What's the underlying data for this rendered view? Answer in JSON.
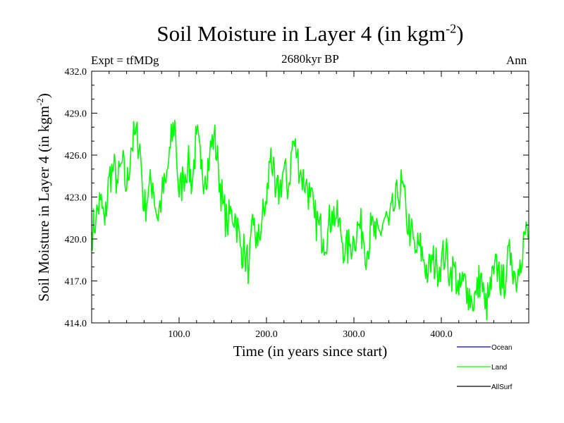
{
  "header": {
    "title": "Soil Moisture in Layer 4 (in kgm",
    "title_exp": "-2",
    "title_close": ")",
    "subtitle": "2680kyr BP",
    "experiment": "Expt = tfMDg",
    "season": "Ann"
  },
  "chart_data": {
    "type": "line",
    "title": "Soil Moisture in Layer 4 (in kgm-2)",
    "subtitle": "2680kyr BP",
    "xlabel": "Time (in years since start)",
    "ylabel": "Soil Moisture in Layer 4 (in kgm",
    "ylabel_exp": "-2",
    "ylabel_close": ")",
    "xlim": [
      0,
      500
    ],
    "ylim": [
      414.0,
      432.0
    ],
    "xticks": [
      100,
      200,
      300,
      400
    ],
    "xtick_labels": [
      "100.0",
      "200.0",
      "300.0",
      "400.0"
    ],
    "yticks": [
      414,
      417,
      420,
      423,
      426,
      429,
      432
    ],
    "ytick_labels": [
      "414.0",
      "417.0",
      "420.0",
      "423.0",
      "426.0",
      "429.0",
      "432.0"
    ],
    "legend": [
      {
        "name": "Ocean",
        "color": "#0000ff"
      },
      {
        "name": "Land",
        "color": "#00ff00"
      },
      {
        "name": "AllSurf",
        "color": "#000000"
      }
    ],
    "series": [
      {
        "name": "Land",
        "color": "#00ff00",
        "x": [
          0,
          5,
          10,
          15,
          20,
          25,
          30,
          35,
          40,
          45,
          50,
          55,
          60,
          65,
          70,
          75,
          80,
          85,
          90,
          95,
          100,
          105,
          110,
          115,
          120,
          125,
          130,
          135,
          140,
          145,
          150,
          155,
          160,
          165,
          170,
          175,
          180,
          185,
          190,
          195,
          200,
          205,
          210,
          215,
          220,
          225,
          230,
          235,
          240,
          245,
          250,
          255,
          260,
          265,
          270,
          275,
          280,
          285,
          290,
          295,
          300,
          305,
          310,
          315,
          320,
          325,
          330,
          335,
          340,
          345,
          350,
          355,
          360,
          365,
          370,
          375,
          380,
          385,
          390,
          395,
          400,
          405,
          410,
          415,
          420,
          425,
          430,
          435,
          440,
          445,
          450,
          455,
          460,
          465,
          470,
          475,
          480,
          485,
          490,
          495,
          500
        ],
        "values": [
          420.5,
          421.5,
          422.8,
          421.0,
          424.5,
          425.0,
          424.0,
          425.5,
          423.5,
          426.5,
          427.5,
          426.8,
          422.0,
          423.5,
          424.0,
          421.5,
          423.0,
          424.0,
          426.5,
          428.5,
          423.0,
          424.5,
          425.5,
          424.0,
          427.5,
          425.0,
          424.5,
          426.0,
          427.5,
          425.0,
          422.5,
          421.0,
          422.0,
          421.5,
          419.5,
          419.0,
          418.0,
          421.0,
          419.5,
          421.5,
          422.5,
          426.5,
          423.0,
          423.5,
          425.0,
          423.5,
          427.0,
          426.0,
          424.5,
          424.0,
          423.0,
          421.5,
          421.0,
          420.0,
          420.5,
          422.0,
          421.5,
          420.5,
          419.0,
          419.5,
          420.0,
          421.0,
          420.5,
          419.0,
          421.0,
          420.0,
          420.5,
          421.5,
          421.0,
          422.0,
          423.0,
          424.0,
          421.5,
          420.5,
          419.0,
          419.5,
          418.5,
          417.5,
          418.5,
          418.0,
          418.5,
          419.0,
          417.5,
          418.0,
          416.0,
          417.0,
          416.5,
          415.5,
          416.0,
          417.5,
          415.0,
          416.0,
          417.5,
          418.0,
          416.5,
          418.0,
          419.0,
          417.0,
          418.5,
          420.5,
          420.0
        ]
      }
    ]
  }
}
